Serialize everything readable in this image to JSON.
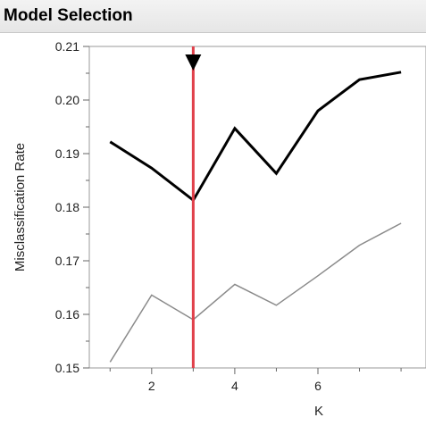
{
  "panel": {
    "title": "Model Selection"
  },
  "chart_data": {
    "type": "line",
    "xlabel": "K",
    "ylabel": "Misclassification Rate",
    "xlim": [
      0.5,
      8.6
    ],
    "ylim": [
      0.15,
      0.21
    ],
    "xticks": [
      2,
      4,
      6
    ],
    "yticks": [
      "0.15",
      "0.16",
      "0.17",
      "0.18",
      "0.19",
      "0.20",
      "0.21"
    ],
    "grid": false,
    "selected_k": 3,
    "colors": {
      "primary": "#000000",
      "secondary": "#8a8a8a",
      "marker_line": "#e0404a"
    },
    "series": [
      {
        "x": [
          1,
          2,
          3,
          4,
          5,
          6,
          7,
          8
        ],
        "values": [
          0.1922,
          0.1873,
          0.1813,
          0.1947,
          0.1863,
          0.198,
          0.2038,
          0.2052
        ]
      },
      {
        "x": [
          1,
          2,
          3,
          4,
          5,
          6,
          7,
          8
        ],
        "values": [
          0.1511,
          0.1636,
          0.159,
          0.1656,
          0.1617,
          0.1672,
          0.1729,
          0.177
        ]
      }
    ]
  }
}
